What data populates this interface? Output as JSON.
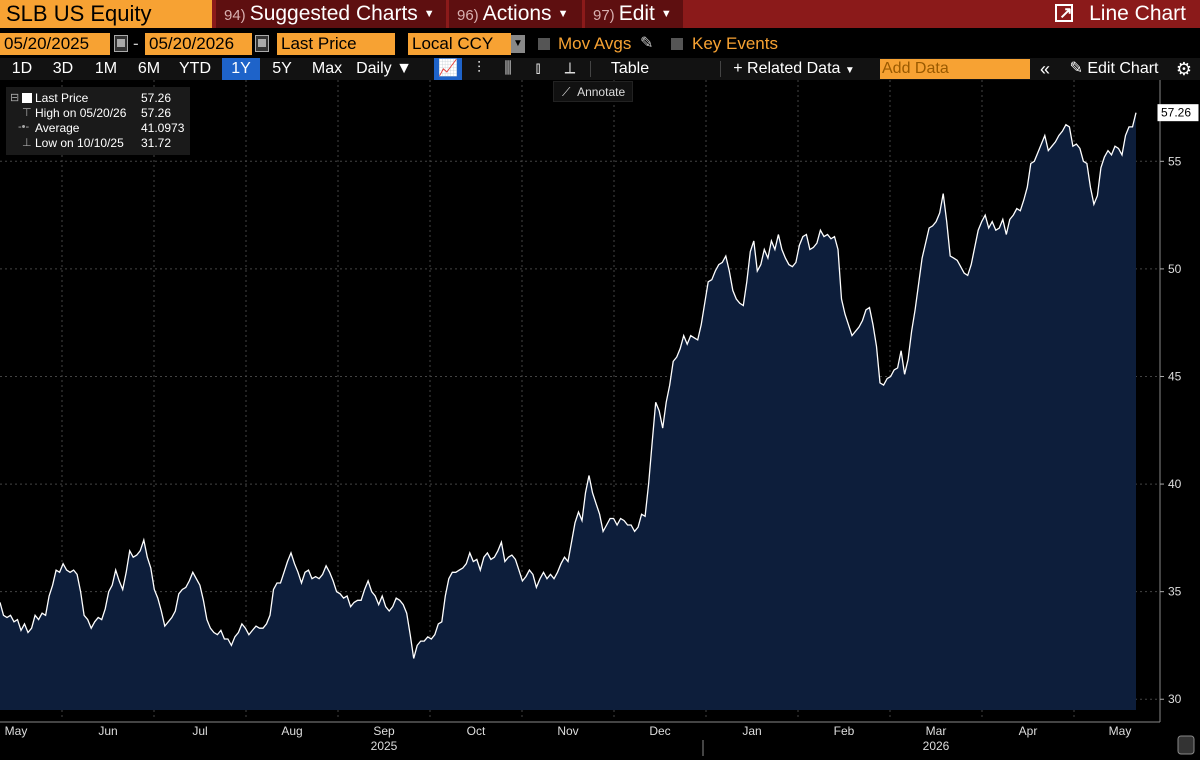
{
  "header": {
    "ticker": "SLB US Equity",
    "menus": [
      {
        "num": "94)",
        "label": "Suggested Charts"
      },
      {
        "num": "96)",
        "label": "Actions"
      },
      {
        "num": "97)",
        "label": "Edit"
      }
    ],
    "chart_type": "Line Chart"
  },
  "controls": {
    "start_date": "05/20/2025",
    "date_sep": "-",
    "end_date": "05/20/2026",
    "field": "Last Price",
    "currency": "Local CCY",
    "mov_avgs": "Mov Avgs",
    "key_events": "Key Events"
  },
  "toolbar": {
    "ranges": [
      "1D",
      "3D",
      "1M",
      "6M",
      "YTD",
      "1Y",
      "5Y",
      "Max"
    ],
    "active_range": "1Y",
    "frequency": "Daily",
    "table": "Table",
    "related_data": "Related Data",
    "add_data_placeholder": "Add Data",
    "edit_chart": "Edit Chart",
    "annotate": "Annotate"
  },
  "legend": [
    {
      "label": "Last Price",
      "value": "57.26"
    },
    {
      "label": "High on 05/20/26",
      "value": "57.26"
    },
    {
      "label": "Average",
      "value": "41.0973"
    },
    {
      "label": "Low on 10/10/25",
      "value": "31.72"
    }
  ],
  "chart_data": {
    "type": "area",
    "series": [
      {
        "values": [
          34.5,
          33.9,
          33.8,
          33.9,
          33.6,
          33.7,
          33.2,
          33.5,
          33.1,
          33.3,
          33.9,
          33.7,
          34.0,
          33.9,
          34.8,
          35.3,
          36.0,
          35.9,
          36.3,
          36.0,
          35.9,
          36.0,
          35.8,
          35.0,
          33.9,
          33.7,
          33.3,
          33.6,
          33.8,
          33.7,
          34.2,
          35.0,
          35.3,
          36.0,
          35.5,
          35.1,
          35.9,
          36.9,
          36.6,
          36.7,
          36.9,
          37.4,
          36.6,
          36.1,
          35.1,
          34.7,
          34.1,
          33.4,
          33.6,
          33.8,
          34.1,
          34.9,
          35.1,
          35.2,
          35.5,
          35.9,
          35.6,
          35.3,
          34.6,
          33.7,
          33.3,
          33.1,
          33.0,
          33.2,
          32.8,
          32.8,
          32.5,
          32.9,
          33.1,
          33.5,
          33.3,
          33.0,
          33.2,
          33.4,
          33.3,
          33.3,
          33.5,
          33.9,
          35.1,
          35.4,
          35.4,
          35.9,
          36.4,
          36.8,
          36.3,
          35.9,
          35.4,
          35.9,
          36.0,
          35.6,
          35.7,
          35.6,
          35.8,
          36.2,
          35.9,
          35.5,
          35.0,
          34.9,
          34.7,
          34.8,
          34.3,
          34.5,
          34.6,
          34.6,
          35.1,
          35.5,
          35.0,
          34.8,
          34.4,
          34.8,
          34.3,
          34.1,
          34.3,
          34.7,
          34.6,
          34.4,
          34.0,
          33.0,
          31.9,
          32.5,
          32.7,
          32.7,
          32.9,
          32.8,
          33.0,
          33.5,
          33.6,
          34.8,
          35.6,
          35.9,
          35.9,
          36.0,
          36.1,
          36.3,
          36.8,
          36.4,
          36.5,
          36.0,
          36.6,
          36.8,
          36.5,
          36.6,
          36.9,
          37.3,
          36.4,
          36.6,
          36.7,
          36.5,
          36.0,
          35.5,
          35.7,
          36.0,
          35.8,
          35.2,
          35.6,
          35.9,
          35.6,
          35.8,
          35.6,
          35.9,
          36.3,
          36.6,
          36.4,
          37.3,
          38.2,
          38.7,
          38.3,
          39.6,
          40.4,
          39.6,
          39.1,
          38.6,
          37.8,
          38.1,
          38.4,
          38.4,
          38.1,
          38.4,
          38.3,
          38.1,
          38.1,
          37.8,
          38.0,
          38.6,
          38.5,
          40.0,
          41.9,
          43.8,
          43.4,
          42.6,
          43.8,
          44.6,
          45.7,
          45.9,
          46.3,
          46.9,
          46.5,
          46.9,
          46.8,
          46.7,
          47.4,
          48.4,
          49.4,
          49.5,
          49.9,
          50.2,
          50.3,
          50.6,
          49.9,
          49.0,
          48.6,
          48.4,
          48.3,
          49.4,
          50.8,
          51.3,
          49.9,
          50.2,
          50.9,
          50.5,
          51.3,
          50.9,
          51.6,
          50.9,
          50.5,
          50.2,
          50.1,
          50.3,
          51.1,
          51.5,
          51.6,
          50.9,
          51.0,
          51.2,
          51.8,
          51.5,
          51.6,
          51.4,
          51.5,
          50.9,
          48.6,
          47.9,
          47.4,
          46.9,
          47.1,
          47.3,
          47.6,
          48.1,
          48.2,
          47.4,
          46.4,
          44.7,
          44.6,
          44.9,
          45.0,
          45.3,
          45.4,
          46.2,
          45.1,
          45.8,
          47.1,
          48.1,
          49.3,
          50.5,
          51.2,
          51.9,
          52.0,
          52.2,
          52.6,
          53.5,
          52.2,
          50.6,
          50.5,
          50.4,
          50.1,
          49.8,
          49.7,
          50.2,
          51.0,
          51.8,
          52.2,
          52.5,
          51.9,
          52.2,
          51.8,
          51.9,
          52.3,
          51.6,
          52.3,
          52.5,
          52.8,
          52.7,
          53.2,
          53.8,
          54.9,
          55.0,
          55.4,
          55.8,
          56.2,
          55.5,
          55.7,
          55.9,
          56.2,
          56.4,
          56.7,
          56.6,
          55.7,
          55.8,
          55.6,
          55.0,
          54.9,
          53.8,
          53.0,
          53.4,
          54.7,
          55.2,
          55.5,
          55.3,
          55.7,
          55.6,
          55.3,
          56.2,
          56.6,
          56.6,
          57.26
        ]
      }
    ],
    "x_labels": [
      {
        "label": "May",
        "year": ""
      },
      {
        "label": "Jun",
        "year": ""
      },
      {
        "label": "Jul",
        "year": ""
      },
      {
        "label": "Aug",
        "year": ""
      },
      {
        "label": "Sep",
        "year": "2025"
      },
      {
        "label": "Oct",
        "year": ""
      },
      {
        "label": "Nov",
        "year": ""
      },
      {
        "label": "Dec",
        "year": ""
      },
      {
        "label": "Jan",
        "year": ""
      },
      {
        "label": "Feb",
        "year": ""
      },
      {
        "label": "Mar",
        "year": "2026"
      },
      {
        "label": "Apr",
        "year": ""
      },
      {
        "label": "May",
        "year": ""
      }
    ],
    "y_ticks": [
      30,
      35,
      40,
      45,
      50,
      55
    ],
    "y_tick_labels": [
      "30",
      "35",
      "40",
      "45",
      "50",
      "55"
    ],
    "ylim": [
      29.5,
      58.5
    ],
    "last_value_label": "57.26",
    "colors": {
      "line": "#ffffff",
      "fill": "#0d1e3b",
      "grid": "#444444"
    }
  }
}
